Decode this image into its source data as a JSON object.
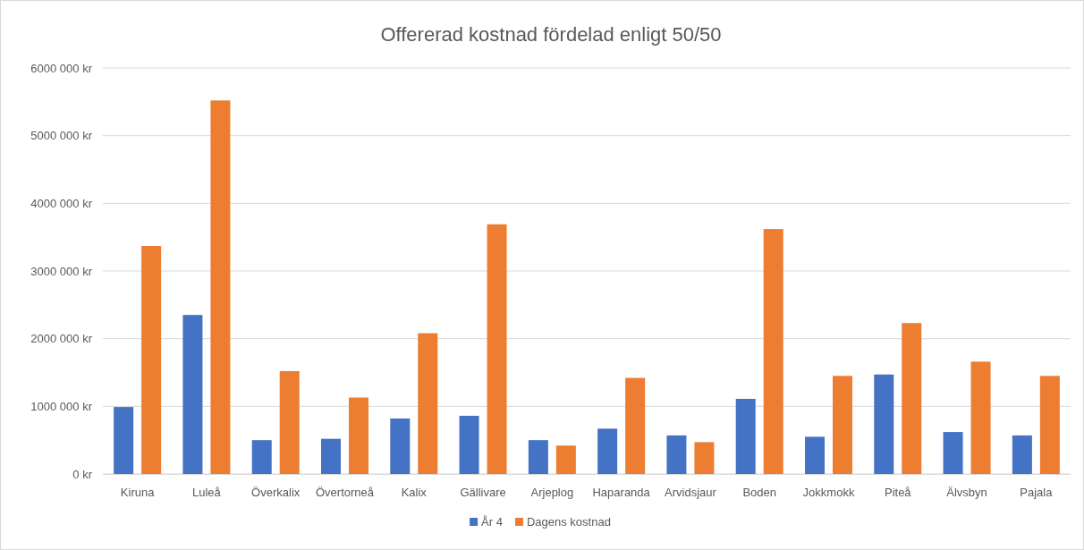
{
  "chart_data": {
    "type": "bar",
    "title": "Offererad kostnad fördelad enligt 50/50",
    "categories": [
      "Kiruna",
      "Luleå",
      "Överkalix",
      "Övertorneå",
      "Kalix",
      "Gällivare",
      "Arjeplog",
      "Haparanda",
      "Arvidsjaur",
      "Boden",
      "Jokkmokk",
      "Piteå",
      "Älvsbyn",
      "Pajala"
    ],
    "series": [
      {
        "name": "År 4",
        "color": "#4472c4",
        "values": [
          990000,
          2350000,
          500000,
          520000,
          820000,
          860000,
          500000,
          670000,
          570000,
          1110000,
          550000,
          1470000,
          620000,
          570000
        ]
      },
      {
        "name": "Dagens kostnad",
        "color": "#ed7d31",
        "values": [
          3370000,
          5520000,
          1520000,
          1130000,
          2080000,
          3690000,
          420000,
          1420000,
          470000,
          3620000,
          1450000,
          2230000,
          1660000,
          1450000
        ]
      }
    ],
    "ylim": [
      0,
      6000000
    ],
    "yticks": [
      {
        "value": 0,
        "label": "0 kr"
      },
      {
        "value": 1000000,
        "label": "1000 000 kr"
      },
      {
        "value": 2000000,
        "label": "2000 000 kr"
      },
      {
        "value": 3000000,
        "label": "3000 000 kr"
      },
      {
        "value": 4000000,
        "label": "4000 000 kr"
      },
      {
        "value": 5000000,
        "label": "5000 000 kr"
      },
      {
        "value": 6000000,
        "label": "6000 000 kr"
      }
    ],
    "grid": "y",
    "legend": "bottom"
  }
}
